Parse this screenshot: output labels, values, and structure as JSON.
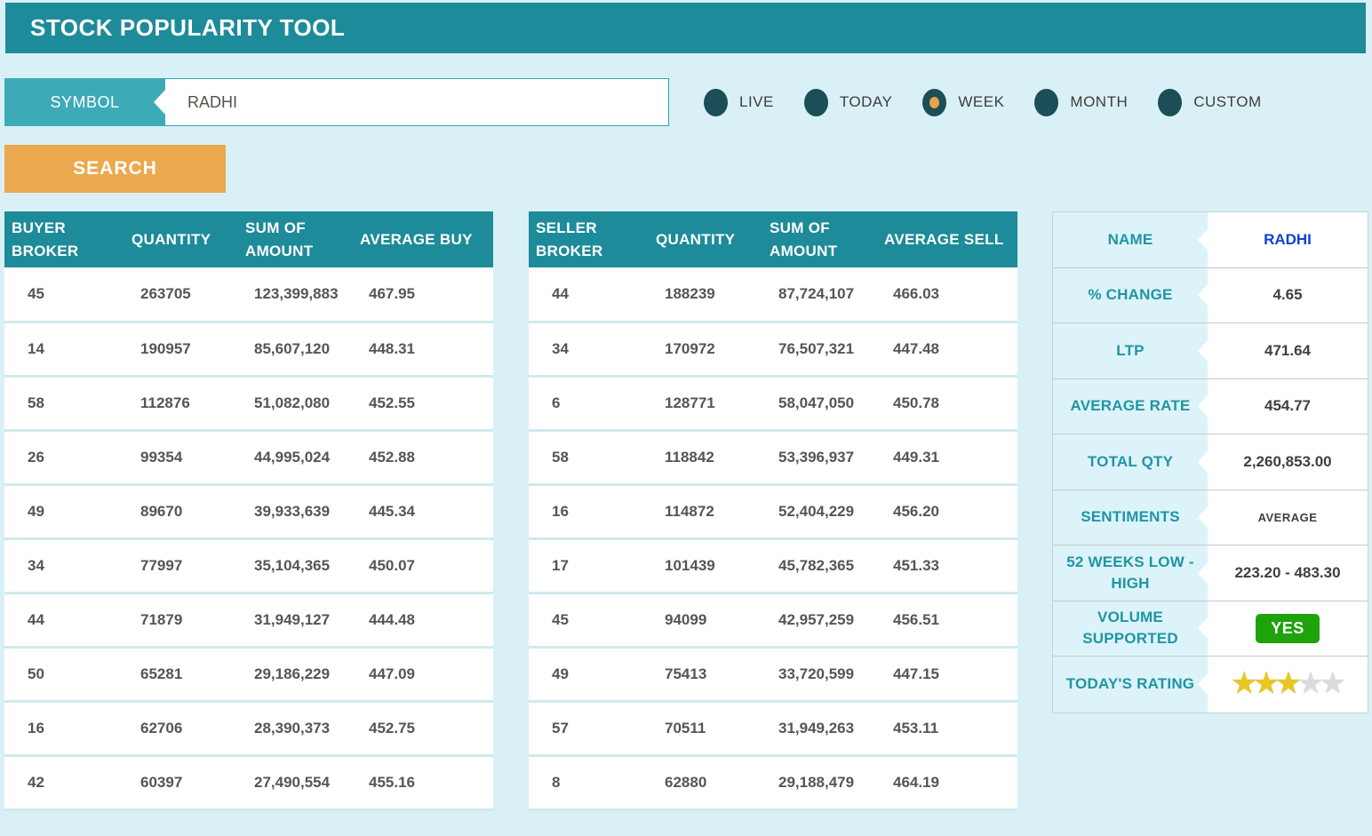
{
  "header": {
    "title": "STOCK POPULARITY TOOL"
  },
  "search_bar": {
    "symbol_label": "SYMBOL",
    "symbol_value": "RADHI",
    "search_label": "SEARCH"
  },
  "periods": {
    "options": [
      {
        "label": "LIVE",
        "selected": false
      },
      {
        "label": "TODAY",
        "selected": false
      },
      {
        "label": "WEEK",
        "selected": true
      },
      {
        "label": "MONTH",
        "selected": false
      },
      {
        "label": "CUSTOM",
        "selected": false
      }
    ]
  },
  "buyer_table": {
    "headers": [
      "BUYER BROKER",
      "QUANTITY",
      "SUM OF AMOUNT",
      "AVERAGE BUY"
    ],
    "rows": [
      [
        "45",
        "263705",
        "123,399,883",
        "467.95"
      ],
      [
        "14",
        "190957",
        "85,607,120",
        "448.31"
      ],
      [
        "58",
        "112876",
        "51,082,080",
        "452.55"
      ],
      [
        "26",
        "99354",
        "44,995,024",
        "452.88"
      ],
      [
        "49",
        "89670",
        "39,933,639",
        "445.34"
      ],
      [
        "34",
        "77997",
        "35,104,365",
        "450.07"
      ],
      [
        "44",
        "71879",
        "31,949,127",
        "444.48"
      ],
      [
        "50",
        "65281",
        "29,186,229",
        "447.09"
      ],
      [
        "16",
        "62706",
        "28,390,373",
        "452.75"
      ],
      [
        "42",
        "60397",
        "27,490,554",
        "455.16"
      ]
    ]
  },
  "seller_table": {
    "headers": [
      "SELLER BROKER",
      "QUANTITY",
      "SUM OF AMOUNT",
      "AVERAGE SELL"
    ],
    "rows": [
      [
        "44",
        "188239",
        "87,724,107",
        "466.03"
      ],
      [
        "34",
        "170972",
        "76,507,321",
        "447.48"
      ],
      [
        "6",
        "128771",
        "58,047,050",
        "450.78"
      ],
      [
        "58",
        "118842",
        "53,396,937",
        "449.31"
      ],
      [
        "16",
        "114872",
        "52,404,229",
        "456.20"
      ],
      [
        "17",
        "101439",
        "45,782,365",
        "451.33"
      ],
      [
        "45",
        "94099",
        "42,957,259",
        "456.51"
      ],
      [
        "49",
        "75413",
        "33,720,599",
        "447.15"
      ],
      [
        "57",
        "70511",
        "31,949,263",
        "453.11"
      ],
      [
        "8",
        "62880",
        "29,188,479",
        "464.19"
      ]
    ]
  },
  "summary": {
    "name_label": "NAME",
    "name_value": "RADHI",
    "change_label": "% CHANGE",
    "change_value": "4.65",
    "ltp_label": "LTP",
    "ltp_value": "471.64",
    "avg_rate_label": "AVERAGE RATE",
    "avg_rate_value": "454.77",
    "total_qty_label": "TOTAL QTY",
    "total_qty_value": "2,260,853.00",
    "sentiments_label": "SENTIMENTS",
    "sentiments_value": "AVERAGE",
    "weeks52_label": "52 WEEKS LOW - HIGH",
    "weeks52_value": "223.20 - 483.30",
    "volume_label": "VOLUME SUPPORTED",
    "volume_value": "YES",
    "rating_label": "TODAY'S RATING",
    "rating": {
      "filled": 3,
      "total": 5
    }
  },
  "colors": {
    "header_teal": "#1d8b99",
    "label_teal": "#3daab8",
    "page_bg": "#d9f1f6",
    "search_orange": "#eba94f",
    "radio_dark_teal": "#1c4e57",
    "radio_selected_dot": "#e9a24b",
    "name_link_blue": "#0c3fd8",
    "volume_yes_green": "#1ea30b",
    "star_gold": "#e9c71f",
    "star_empty": "#dcdcdc",
    "summary_label_teal": "#2095a3"
  }
}
